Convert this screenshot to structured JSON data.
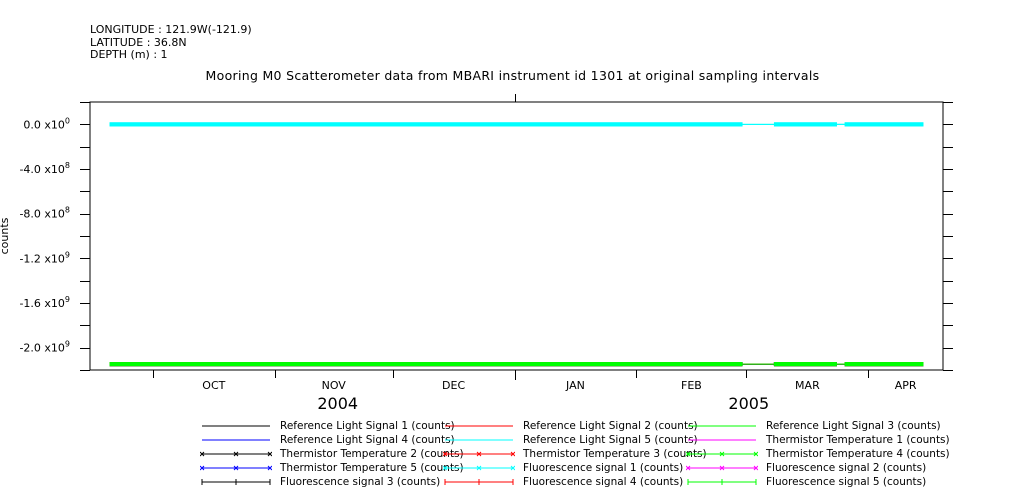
{
  "meta": {
    "longitude": "LONGITUDE : 121.9W(-121.9)",
    "latitude": "LATITUDE : 36.8N",
    "depth": "DEPTH (m) : 1"
  },
  "chart_data": {
    "type": "line",
    "title": "Mooring M0 Scatterometer data from MBARI instrument id 1301 at original sampling intervals",
    "ylabel": "counts",
    "xlabel": "",
    "x_months": [
      "OCT",
      "NOV",
      "DEC",
      "JAN",
      "FEB",
      "MAR",
      "APR"
    ],
    "x_years": [
      "2004",
      "2005"
    ],
    "xlim": [
      "2004-09-15",
      "2005-04-20"
    ],
    "ylim": [
      -2200000000.0,
      200000000.0
    ],
    "y_ticks": [
      {
        "value": 0,
        "label": "0.0 x10",
        "exp": "0"
      },
      {
        "value": -400000000.0,
        "label": "-4.0 x10",
        "exp": "8"
      },
      {
        "value": -800000000.0,
        "label": "-8.0 x10",
        "exp": "8"
      },
      {
        "value": -1200000000.0,
        "label": "-1.2 x10",
        "exp": "9"
      },
      {
        "value": -1600000000.0,
        "label": "-1.6 x10",
        "exp": "9"
      },
      {
        "value": -2000000000.0,
        "label": "-2.0 x10",
        "exp": "9"
      }
    ],
    "grid": false,
    "legend_position": "bottom",
    "data_start": "2004-09-20",
    "data_end": "2005-04-15",
    "gaps": [
      [
        "2005-02-28",
        "2005-03-08"
      ],
      [
        "2005-03-24",
        "2005-03-26"
      ]
    ],
    "series": [
      {
        "name": "Reference Light Signal 1 (counts)",
        "color": "#000000",
        "marker": "none",
        "level": -2147000000.0
      },
      {
        "name": "Reference Light Signal 2 (counts)",
        "color": "#ff0000",
        "marker": "none",
        "level": -2147000000.0
      },
      {
        "name": "Reference Light Signal 3 (counts)",
        "color": "#00ff00",
        "marker": "none",
        "level": -2147000000.0
      },
      {
        "name": "Reference Light Signal 4 (counts)",
        "color": "#0000ff",
        "marker": "none",
        "level": -2147000000.0
      },
      {
        "name": "Reference Light Signal 5 (counts)",
        "color": "#00ffff",
        "marker": "none",
        "level": 0
      },
      {
        "name": "Thermistor Temperature 1 (counts)",
        "color": "#ff00ff",
        "marker": "none",
        "level": -2147000000.0
      },
      {
        "name": "Thermistor Temperature 2 (counts)",
        "color": "#000000",
        "marker": "x",
        "level": -2147000000.0
      },
      {
        "name": "Thermistor Temperature 3 (counts)",
        "color": "#ff0000",
        "marker": "x",
        "level": -2147000000.0
      },
      {
        "name": "Thermistor Temperature 4 (counts)",
        "color": "#00ff00",
        "marker": "x",
        "level": -2147000000.0
      },
      {
        "name": "Thermistor Temperature 5 (counts)",
        "color": "#0000ff",
        "marker": "x",
        "level": -2147000000.0
      },
      {
        "name": "Fluorescence signal 1 (counts)",
        "color": "#00ffff",
        "marker": "x",
        "level": 0
      },
      {
        "name": "Fluorescence signal 2 (counts)",
        "color": "#ff00ff",
        "marker": "x",
        "level": -2147000000.0
      },
      {
        "name": "Fluorescence signal 3 (counts)",
        "color": "#000000",
        "marker": "+",
        "level": -2147000000.0
      },
      {
        "name": "Fluorescence signal 4 (counts)",
        "color": "#ff0000",
        "marker": "+",
        "level": -2147000000.0
      },
      {
        "name": "Fluorescence signal 5 (counts)",
        "color": "#00ff00",
        "marker": "+",
        "level": -2147000000.0
      }
    ]
  }
}
